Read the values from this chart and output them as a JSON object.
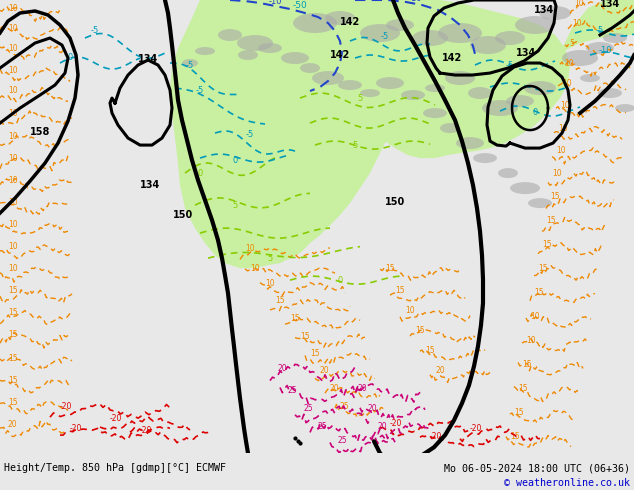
{
  "title_left": "Height/Temp. 850 hPa [gdmp][°C] ECMWF",
  "title_right": "Mo 06-05-2024 18:00 UTC (06+36)",
  "copyright": "© weatheronline.co.uk",
  "bg_light": "#e8e8e8",
  "green_fill": "#c8f0a0",
  "gray_land": "#b0b0b0",
  "fig_width": 6.34,
  "fig_height": 4.9,
  "dpi": 100,
  "bottom_color": "#e0e0e0",
  "title_color": "#000000",
  "copyright_color": "#0000cc"
}
